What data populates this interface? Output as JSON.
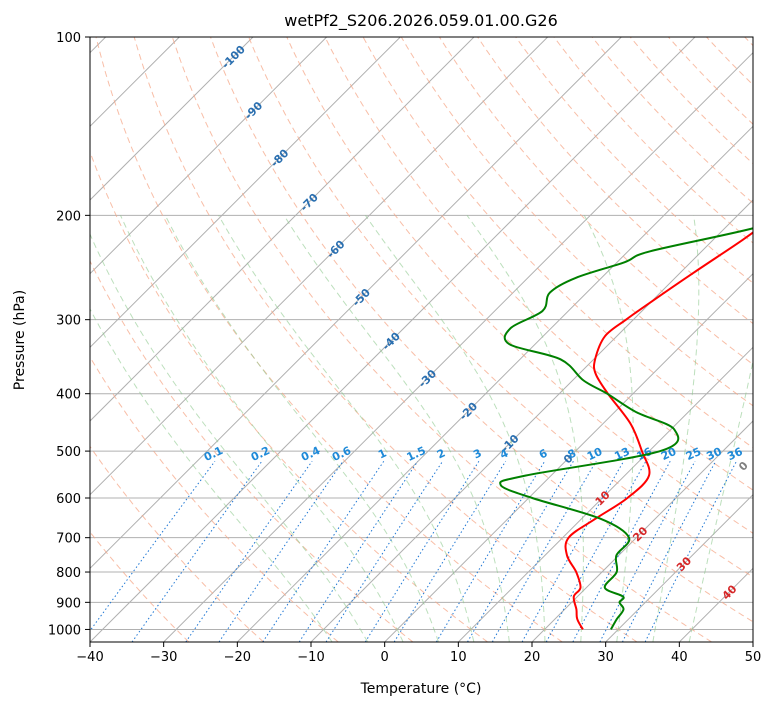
{
  "chart_data": {
    "type": "line",
    "subtype": "skew-t log-p",
    "title": "wetPf2_S206.2026.059.01.00.G26",
    "xlabel": "Temperature (°C)",
    "ylabel": "Pressure (hPa)",
    "xlim": [
      -40,
      50
    ],
    "ylim": [
      1050,
      100
    ],
    "x_ticks": [
      -40,
      -30,
      -20,
      -10,
      0,
      10,
      20,
      30,
      40,
      50
    ],
    "y_ticks": [
      100,
      200,
      300,
      400,
      500,
      600,
      700,
      800,
      900,
      1000
    ],
    "isotherm_labels": [
      -100,
      -90,
      -80,
      -70,
      -60,
      -50,
      -40,
      -30,
      -20,
      -10,
      0,
      10,
      20,
      30,
      40
    ],
    "mixing_ratio_labels": [
      "0.1",
      "0.2",
      "0.4",
      "0.6",
      "1",
      "1.5",
      "2",
      "3",
      "4",
      "6",
      "8",
      "10",
      "13",
      "16",
      "20",
      "25",
      "30",
      "36"
    ],
    "mixing_ratios": [
      0.1,
      0.2,
      0.4,
      0.6,
      1,
      1.5,
      2,
      3,
      4,
      6,
      8,
      10,
      13,
      16,
      20,
      25,
      30,
      36
    ],
    "dry_adiabats_theta_c": [
      -30,
      -20,
      -10,
      0,
      10,
      20,
      30,
      40,
      50,
      60,
      70,
      80,
      90,
      100,
      110,
      120,
      130,
      140,
      150,
      160,
      170,
      180,
      190,
      200
    ],
    "moist_adiabats_c": [
      -10,
      -5,
      0,
      5,
      10,
      15,
      20,
      25,
      30,
      35,
      40
    ],
    "series": [
      {
        "name": "Temperature",
        "color": "#ff0000",
        "pressure": [
          1000,
          960,
          925,
          880,
          850,
          800,
          750,
          700,
          650,
          600,
          550,
          500,
          450,
          400,
          370,
          350,
          320,
          300,
          280,
          250,
          220,
          200,
          180,
          160,
          140,
          130,
          120,
          110,
          100
        ],
        "temperature": [
          25.2,
          23,
          21.6,
          19.5,
          19.2,
          16.5,
          13,
          10.8,
          11.9,
          13.4,
          13.3,
          9.0,
          3.8,
          -3.4,
          -7.8,
          -9.8,
          -11.6,
          -11.0,
          -10.0,
          -8.2,
          -6.0,
          -4.8,
          -3.8,
          -2.6,
          -2.0,
          -3.0,
          -0.5,
          0.5,
          1.0
        ]
      },
      {
        "name": "Dewpoint",
        "color": "#008000",
        "pressure": [
          1000,
          960,
          925,
          900,
          880,
          850,
          800,
          750,
          700,
          650,
          600,
          570,
          550,
          500,
          460,
          430,
          400,
          380,
          350,
          330,
          310,
          290,
          270,
          255,
          240,
          230,
          210,
          195,
          180,
          165,
          160,
          150,
          140,
          130,
          120,
          110,
          100
        ],
        "temperature": [
          29,
          28.4,
          28.0,
          26.5,
          26.2,
          22.5,
          22.0,
          19.7,
          19.0,
          12.5,
          0.5,
          -5.6,
          -3.5,
          11.5,
          10.5,
          3.0,
          -3.5,
          -8.5,
          -14.5,
          -23.5,
          -25.5,
          -23.5,
          -25.0,
          -23.5,
          -19.0,
          -17.0,
          -6.0,
          -0.5,
          -2.6,
          -8.7,
          -10.6,
          -4.2,
          5.5,
          13.0,
          17.0,
          17.7,
          20.5
        ]
      }
    ],
    "special_labels": [
      {
        "text": "0",
        "color": "#808080"
      },
      {
        "text": "10",
        "color": "#d62728"
      },
      {
        "text": "20",
        "color": "#d62728"
      },
      {
        "text": "30",
        "color": "#d62728"
      },
      {
        "text": "40",
        "color": "#d62728"
      }
    ]
  }
}
